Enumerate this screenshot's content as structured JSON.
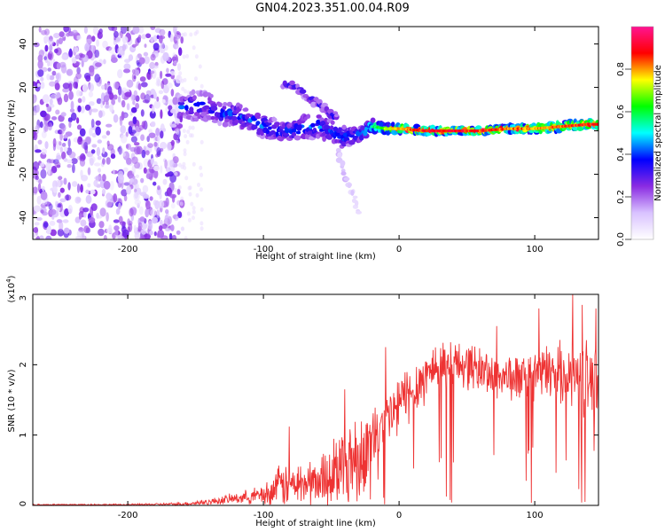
{
  "figure": {
    "title": "GN04.2023.351.00.04.R09"
  },
  "chart_data": [
    {
      "type": "heatmap",
      "xlabel": "Height of straight line (km)",
      "ylabel": "Frequency (Hz)",
      "xlim": [
        -270,
        147
      ],
      "ylim": [
        -50,
        48
      ],
      "xticks": [
        -200,
        -100,
        0,
        100
      ],
      "yticks": [
        -40,
        -20,
        0,
        20,
        40
      ],
      "colorbar": {
        "label": "Normalized spectral amplitude",
        "range": [
          0,
          1
        ],
        "ticks": [
          0.0,
          0.2,
          0.4,
          0.6,
          0.8
        ],
        "colors": [
          "#ffffff",
          "#d9c2ff",
          "#8a2be2",
          "#0000ff",
          "#00ffff",
          "#00ff00",
          "#ffff00",
          "#ff0000",
          "#ff1493"
        ]
      },
      "noise_region": {
        "x": [
          -270,
          -160
        ],
        "y": [
          -50,
          48
        ],
        "amplitude": [
          0.05,
          0.3
        ]
      },
      "ridge": [
        {
          "x": -160,
          "y": 11,
          "a": 0.38,
          "w": 4
        },
        {
          "x": -150,
          "y": 12,
          "a": 0.35,
          "w": 7
        },
        {
          "x": -140,
          "y": 11,
          "a": 0.35,
          "w": 6
        },
        {
          "x": -130,
          "y": 8,
          "a": 0.4,
          "w": 5
        },
        {
          "x": -120,
          "y": 7,
          "a": 0.4,
          "w": 5
        },
        {
          "x": -110,
          "y": 5,
          "a": 0.38,
          "w": 5
        },
        {
          "x": -100,
          "y": 2,
          "a": 0.42,
          "w": 5
        },
        {
          "x": -90,
          "y": 0,
          "a": 0.4,
          "w": 5
        },
        {
          "x": -80,
          "y": 0,
          "a": 0.42,
          "w": 4
        },
        {
          "x": -70,
          "y": 2,
          "a": 0.42,
          "w": 5
        },
        {
          "x": -60,
          "y": 2,
          "a": 0.4,
          "w": 6
        },
        {
          "x": -50,
          "y": 0,
          "a": 0.38,
          "w": 5
        },
        {
          "x": -40,
          "y": -3,
          "a": 0.4,
          "w": 5
        },
        {
          "x": -30,
          "y": -2,
          "a": 0.45,
          "w": 3
        },
        {
          "x": -20,
          "y": 2,
          "a": 0.55,
          "w": 3
        },
        {
          "x": -10,
          "y": 1,
          "a": 0.7,
          "w": 2
        },
        {
          "x": 0,
          "y": 1,
          "a": 0.8,
          "w": 2
        },
        {
          "x": 20,
          "y": 0,
          "a": 0.9,
          "w": 1.5
        },
        {
          "x": 40,
          "y": 0,
          "a": 0.92,
          "w": 1.5
        },
        {
          "x": 60,
          "y": 0,
          "a": 0.88,
          "w": 1.5
        },
        {
          "x": 80,
          "y": 1,
          "a": 0.85,
          "w": 1.5
        },
        {
          "x": 100,
          "y": 1,
          "a": 0.82,
          "w": 2
        },
        {
          "x": 120,
          "y": 2,
          "a": 0.85,
          "w": 2
        },
        {
          "x": 140,
          "y": 3,
          "a": 0.9,
          "w": 2
        },
        {
          "x": 147,
          "y": 3,
          "a": 0.9,
          "w": 2
        }
      ],
      "branches": [
        [
          {
            "x": -85,
            "y": 22,
            "a": 0.3,
            "w": 2
          },
          {
            "x": -75,
            "y": 20,
            "a": 0.3,
            "w": 2
          },
          {
            "x": -65,
            "y": 15,
            "a": 0.32,
            "w": 2
          },
          {
            "x": -55,
            "y": 10,
            "a": 0.32,
            "w": 2
          },
          {
            "x": -45,
            "y": 5,
            "a": 0.35,
            "w": 2
          }
        ],
        [
          {
            "x": -45,
            "y": -10,
            "a": 0.15,
            "w": 2
          },
          {
            "x": -40,
            "y": -20,
            "a": 0.15,
            "w": 2
          },
          {
            "x": -35,
            "y": -28,
            "a": 0.12,
            "w": 2
          },
          {
            "x": -30,
            "y": -37,
            "a": 0.1,
            "w": 1
          }
        ]
      ]
    },
    {
      "type": "line",
      "xlabel": "Height of straight line (km)",
      "ylabel": "SNR (10 * v/v)",
      "yscale_label": "(x10",
      "yscale_exponent": "4",
      "xlim": [
        -270,
        147
      ],
      "ylim": [
        0,
        3
      ],
      "xticks": [
        -200,
        -100,
        0,
        100
      ],
      "yticks": [
        0,
        1,
        2,
        3
      ],
      "line_color": "#ee3333",
      "envelope": [
        {
          "x": -270,
          "mean": 0.01,
          "spread": 0.01
        },
        {
          "x": -200,
          "mean": 0.01,
          "spread": 0.01
        },
        {
          "x": -160,
          "mean": 0.02,
          "spread": 0.02
        },
        {
          "x": -140,
          "mean": 0.05,
          "spread": 0.04
        },
        {
          "x": -120,
          "mean": 0.1,
          "spread": 0.07
        },
        {
          "x": -100,
          "mean": 0.15,
          "spread": 0.12
        },
        {
          "x": -85,
          "mean": 0.3,
          "spread": 0.3
        },
        {
          "x": -75,
          "mean": 0.3,
          "spread": 0.28
        },
        {
          "x": -60,
          "mean": 0.35,
          "spread": 0.3
        },
        {
          "x": -45,
          "mean": 0.55,
          "spread": 0.5
        },
        {
          "x": -35,
          "mean": 0.65,
          "spread": 0.6
        },
        {
          "x": -25,
          "mean": 0.8,
          "spread": 0.5
        },
        {
          "x": -15,
          "mean": 1.05,
          "spread": 0.4
        },
        {
          "x": -5,
          "mean": 1.3,
          "spread": 0.4
        },
        {
          "x": 5,
          "mean": 1.55,
          "spread": 0.4
        },
        {
          "x": 15,
          "mean": 1.75,
          "spread": 0.35
        },
        {
          "x": 25,
          "mean": 1.95,
          "spread": 0.35
        },
        {
          "x": 35,
          "mean": 2.05,
          "spread": 0.3
        },
        {
          "x": 50,
          "mean": 2.0,
          "spread": 0.3
        },
        {
          "x": 70,
          "mean": 1.85,
          "spread": 0.3
        },
        {
          "x": 90,
          "mean": 1.8,
          "spread": 0.3
        },
        {
          "x": 110,
          "mean": 1.9,
          "spread": 0.35
        },
        {
          "x": 125,
          "mean": 1.9,
          "spread": 0.4
        },
        {
          "x": 135,
          "mean": 1.8,
          "spread": 0.5
        },
        {
          "x": 147,
          "mean": 1.7,
          "spread": 0.5
        }
      ],
      "spikes": [
        {
          "x": -81,
          "y": 1.12
        },
        {
          "x": -40,
          "y": 1.65
        },
        {
          "x": -10,
          "y": 2.25
        },
        {
          "x": 72,
          "y": 2.55
        },
        {
          "x": 103,
          "y": 2.8
        },
        {
          "x": 128,
          "y": 3.0
        },
        {
          "x": 135,
          "y": 2.85
        },
        {
          "x": 137,
          "y": 0.05
        },
        {
          "x": 145,
          "y": 2.8
        }
      ]
    }
  ]
}
